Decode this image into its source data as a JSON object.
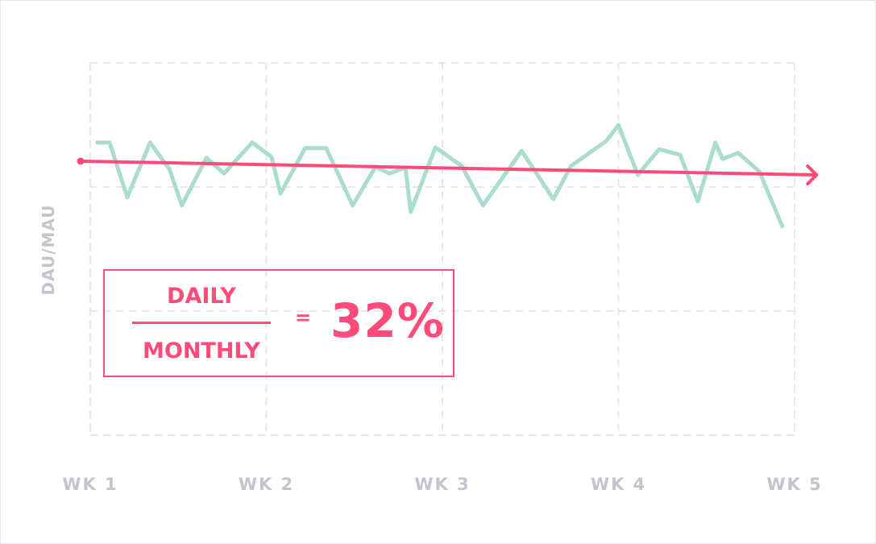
{
  "chart_data": {
    "type": "line",
    "title": "",
    "xlabel": "",
    "ylabel": "DAU/MAU",
    "x_ticks": [
      1,
      2,
      3,
      4,
      5
    ],
    "x_tick_labels": [
      "WK 1",
      "WK 2",
      "WK 3",
      "WK 4",
      "WK 5"
    ],
    "xlim": [
      1,
      5
    ],
    "ylim": [
      0,
      100
    ],
    "grid": true,
    "series": [
      {
        "color": "#aadccf",
        "points": [
          [
            1.04,
            78.6
          ],
          [
            1.11,
            78.6
          ],
          [
            1.21,
            63.9
          ],
          [
            1.34,
            78.6
          ],
          [
            1.45,
            71.4
          ],
          [
            1.52,
            61.7
          ],
          [
            1.66,
            74.5
          ],
          [
            1.76,
            70.3
          ],
          [
            1.92,
            78.6
          ],
          [
            2.03,
            74.7
          ],
          [
            2.08,
            64.9
          ],
          [
            2.22,
            77.1
          ],
          [
            2.34,
            77.1
          ],
          [
            2.49,
            61.7
          ],
          [
            2.62,
            72.1
          ],
          [
            2.7,
            70.3
          ],
          [
            2.79,
            71.9
          ],
          [
            2.82,
            60.0
          ],
          [
            2.96,
            77.3
          ],
          [
            3.11,
            72.3
          ],
          [
            3.23,
            61.7
          ],
          [
            3.45,
            76.4
          ],
          [
            3.63,
            63.4
          ],
          [
            3.73,
            72.3
          ],
          [
            3.93,
            79.0
          ],
          [
            4.0,
            83.3
          ],
          [
            4.11,
            69.9
          ],
          [
            4.23,
            76.8
          ],
          [
            4.35,
            75.3
          ],
          [
            4.45,
            62.8
          ],
          [
            4.55,
            78.6
          ],
          [
            4.59,
            74.2
          ],
          [
            4.68,
            75.8
          ],
          [
            4.8,
            70.8
          ],
          [
            4.93,
            56.1
          ]
        ]
      }
    ],
    "trend_line": {
      "color": "#ff4b7a",
      "points": [
        [
          0.945,
          73.6
        ],
        [
          5.12,
          69.9
        ]
      ],
      "arrow_end": true
    },
    "annotation": {
      "numerator": "DAILY",
      "denominator": "MONTHLY",
      "equals": "=",
      "value": "32%",
      "color": "#ff4b7a"
    }
  }
}
